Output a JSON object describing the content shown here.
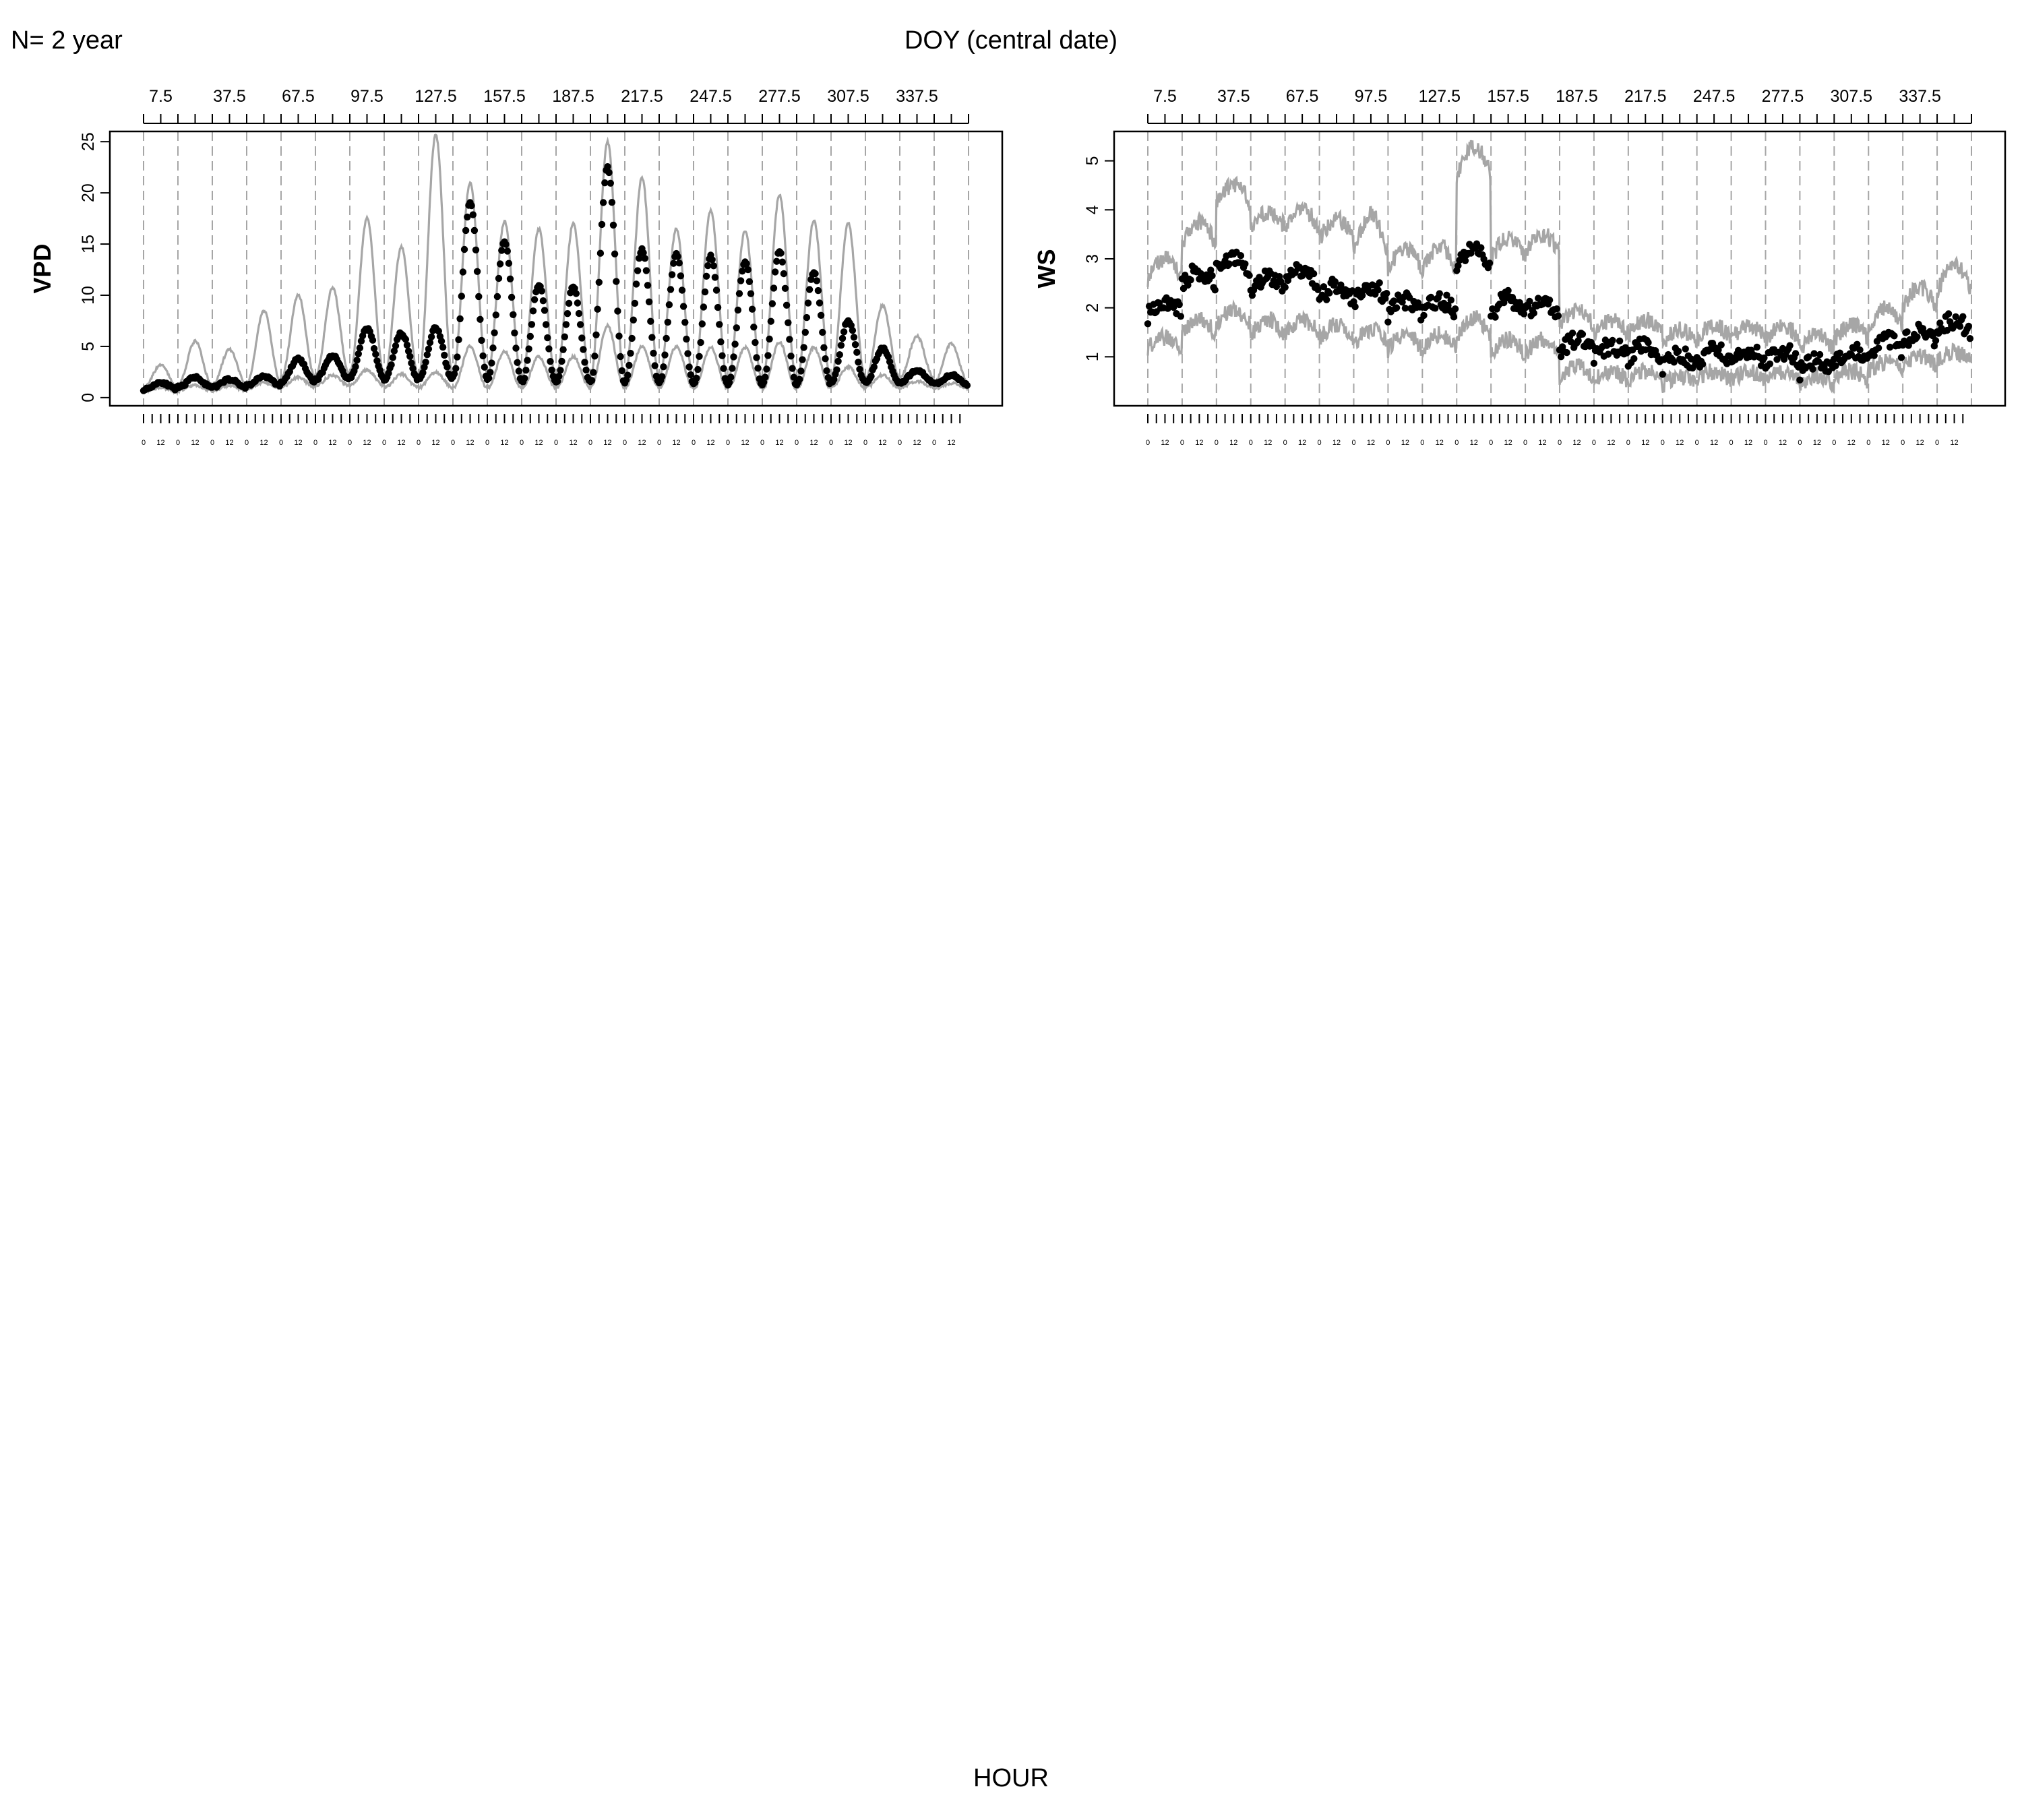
{
  "header": {
    "left_label": "N= 2 year",
    "center_label": "DOY (central date)"
  },
  "footer": {
    "xlabel": "HOUR"
  },
  "colors": {
    "points": "#000000",
    "band": "#a6a6a6",
    "gridline": "#a6a6a6",
    "axis": "#000000"
  },
  "chart_data": [
    {
      "type": "line",
      "ylabel": "VPD",
      "ylim": [
        -0.8,
        26
      ],
      "yticks": [
        0,
        5,
        10,
        15,
        20,
        25
      ],
      "top_axis_ticks": [
        "7.5",
        "37.5",
        "67.5",
        "97.5",
        "127.5",
        "157.5",
        "187.5",
        "217.5",
        "247.5",
        "277.5",
        "307.5",
        "337.5"
      ],
      "hour_tick_labels": [
        "0",
        "12"
      ],
      "n_windows": 24,
      "grid": "dashed vertical lines at window boundaries",
      "series": [
        {
          "role": "mean",
          "style": "black points",
          "window_amplitude": [
            0.7,
            1.0,
            0.8,
            0.9,
            2.3,
            2.3,
            4.8,
            4.5,
            5.0,
            17.0,
            13.5,
            9.5,
            9.3,
            21.0,
            13.0,
            12.5,
            12.5,
            12.0,
            13.0,
            11.0,
            6.0,
            3.3,
            1.2,
            0.9
          ],
          "window_base": [
            0.8,
            1.0,
            1.0,
            1.2,
            1.5,
            1.8,
            2.0,
            1.8,
            1.8,
            2.0,
            1.8,
            1.5,
            1.5,
            1.5,
            1.5,
            1.5,
            1.3,
            1.3,
            1.3,
            1.3,
            1.5,
            1.5,
            1.5,
            1.3
          ]
        },
        {
          "role": "upper band",
          "style": "grey line",
          "window_amplitude": [
            2.2,
            4.2,
            3.4,
            7.0,
            8.0,
            8.5,
            15.0,
            12.5,
            23.5,
            18.5,
            15.0,
            14.5,
            15.0,
            23.0,
            19.5,
            14.5,
            16.5,
            14.5,
            18.0,
            15.5,
            15.0,
            7.0,
            4.0,
            3.8
          ],
          "window_base": [
            1.0,
            1.3,
            1.3,
            1.5,
            2.0,
            2.2,
            2.5,
            2.2,
            2.2,
            2.5,
            2.2,
            2.0,
            2.0,
            2.0,
            2.0,
            2.0,
            1.8,
            1.8,
            1.8,
            1.8,
            2.0,
            2.0,
            2.0,
            1.5
          ]
        },
        {
          "role": "lower band",
          "style": "grey line",
          "window_amplitude": [
            0.4,
            0.5,
            0.5,
            0.6,
            1.0,
            1.0,
            1.5,
            1.3,
            1.5,
            4.0,
            3.5,
            3.0,
            3.0,
            6.0,
            4.0,
            4.0,
            4.0,
            4.0,
            4.5,
            4.0,
            2.0,
            1.2,
            0.6,
            0.5
          ],
          "window_base": [
            0.6,
            0.7,
            0.7,
            0.9,
            1.0,
            1.2,
            1.2,
            1.0,
            1.0,
            1.0,
            1.0,
            1.0,
            1.0,
            1.0,
            1.0,
            1.0,
            0.9,
            0.9,
            0.9,
            0.9,
            1.0,
            1.0,
            1.0,
            0.9
          ]
        }
      ]
    },
    {
      "type": "line",
      "ylabel": "WS",
      "ylim": [
        0,
        5.6
      ],
      "yticks": [
        1,
        2,
        3,
        4,
        5
      ],
      "top_axis_ticks": [
        "7.5",
        "37.5",
        "67.5",
        "97.5",
        "127.5",
        "157.5",
        "187.5",
        "217.5",
        "247.5",
        "277.5",
        "307.5",
        "337.5"
      ],
      "hour_tick_labels": [
        "0",
        "12"
      ],
      "n_windows": 24,
      "grid": "dashed vertical lines at window boundaries",
      "series": [
        {
          "role": "mean",
          "style": "black points",
          "window_level": [
            2.0,
            2.6,
            2.9,
            2.5,
            2.6,
            2.3,
            2.3,
            2.0,
            2.0,
            3.0,
            2.0,
            2.0,
            1.2,
            1.1,
            1.1,
            0.9,
            1.0,
            1.0,
            1.0,
            0.8,
            1.0,
            1.2,
            1.4,
            1.6
          ],
          "window_swing": [
            0.3,
            0.3,
            0.3,
            0.3,
            0.3,
            0.3,
            0.3,
            0.3,
            0.3,
            0.6,
            0.4,
            0.3,
            0.3,
            0.25,
            0.25,
            0.25,
            0.25,
            0.25,
            0.25,
            0.25,
            0.3,
            0.3,
            0.3,
            0.3
          ]
        },
        {
          "role": "upper band",
          "style": "grey line",
          "window_level": [
            2.8,
            3.5,
            4.3,
            3.8,
            3.8,
            3.6,
            3.5,
            3.0,
            3.0,
            5.0,
            3.2,
            3.3,
            1.8,
            1.6,
            1.6,
            1.4,
            1.5,
            1.5,
            1.5,
            1.3,
            1.5,
            1.8,
            2.2,
            2.6
          ],
          "window_swing": [
            0.4,
            0.5,
            0.4,
            0.3,
            0.4,
            0.4,
            0.8,
            0.4,
            0.5,
            0.6,
            0.4,
            0.4,
            0.3,
            0.3,
            0.3,
            0.3,
            0.3,
            0.3,
            0.3,
            0.3,
            0.3,
            0.4,
            0.4,
            0.6
          ]
        },
        {
          "role": "lower band",
          "style": "grey line",
          "window_level": [
            1.3,
            1.6,
            1.8,
            1.6,
            1.6,
            1.5,
            1.4,
            1.3,
            1.3,
            1.6,
            1.2,
            1.2,
            0.7,
            0.6,
            0.6,
            0.5,
            0.6,
            0.6,
            0.6,
            0.5,
            0.6,
            0.8,
            0.9,
            1.0
          ],
          "window_swing": [
            0.2,
            0.3,
            0.3,
            0.3,
            0.3,
            0.3,
            0.3,
            0.3,
            0.3,
            0.4,
            0.3,
            0.3,
            0.2,
            0.2,
            0.2,
            0.2,
            0.2,
            0.2,
            0.2,
            0.2,
            0.2,
            0.2,
            0.2,
            0.2
          ]
        }
      ]
    }
  ]
}
